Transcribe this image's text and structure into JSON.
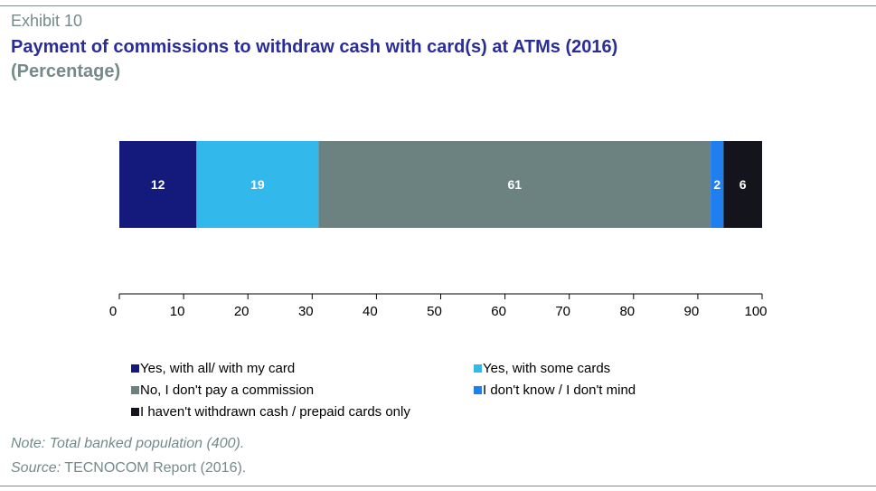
{
  "header": {
    "exhibit": "Exhibit 10",
    "title": "Payment of commissions to withdraw cash with card(s) at ATMs (2016)",
    "subtitle": "(Percentage)"
  },
  "footer": {
    "note": "Note: Total banked population (400).",
    "source_label": "Source:",
    "source_text": " TECNOCOM Report (2016)."
  },
  "chart_data": {
    "type": "bar",
    "orientation": "horizontal-stacked",
    "title": "Payment of commissions to withdraw cash with card(s) at ATMs (2016)",
    "subtitle": "(Percentage)",
    "xlim": [
      0,
      100
    ],
    "xticks": [
      0,
      10,
      20,
      30,
      40,
      50,
      60,
      70,
      80,
      90,
      100
    ],
    "grid": false,
    "legend_position": "bottom",
    "series": [
      {
        "name": "Yes, with all/ with my card",
        "value": 12,
        "color": "#141a7c",
        "label_color": "#ffffff"
      },
      {
        "name": "Yes, with some cards",
        "value": 19,
        "color": "#33b8ec",
        "label_color": "#ffffff"
      },
      {
        "name": "No, I don't pay a commission",
        "value": 61,
        "color": "#6b8281",
        "label_color": "#ffffff"
      },
      {
        "name": "I don't know / I don't mind",
        "value": 2,
        "color": "#1f7ff0",
        "label_color": "#ffffff"
      },
      {
        "name": "I haven't withdrawn cash / prepaid cards only",
        "value": 6,
        "color": "#13141c",
        "label_color": "#ffffff"
      }
    ]
  }
}
